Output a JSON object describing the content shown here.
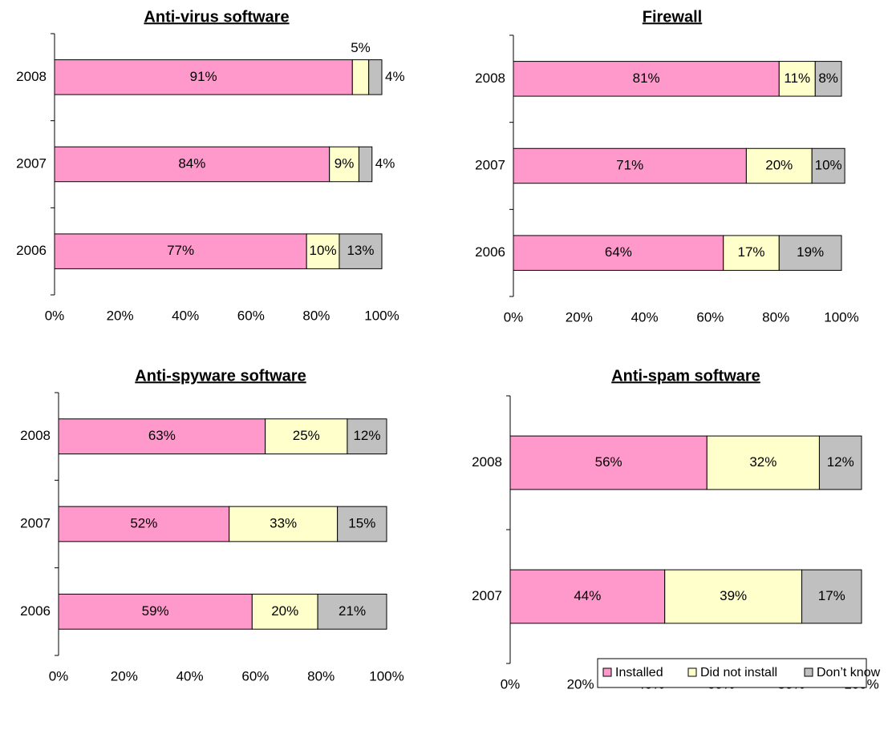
{
  "chart_data": [
    {
      "type": "stacked_bar_horizontal",
      "title": "Anti-virus software",
      "categories": [
        "2008",
        "2007",
        "2006"
      ],
      "series": [
        {
          "name": "Installed",
          "color": "#ff99cc",
          "values": [
            91,
            84,
            77
          ],
          "value_labels": [
            "91%",
            "84%",
            "77%"
          ]
        },
        {
          "name": "Did not install",
          "color": "#ffffcc",
          "values": [
            5,
            9,
            10
          ],
          "value_labels": [
            "5%",
            "9%",
            "10%"
          ]
        },
        {
          "name": "Don’t know",
          "color": "#c0c0c0",
          "values": [
            4,
            4,
            13
          ],
          "value_labels": [
            "4%",
            "4%",
            "13%"
          ]
        }
      ],
      "xlim": [
        0,
        100
      ],
      "xticks": [
        {
          "value": 0,
          "label": "0%"
        },
        {
          "value": 20,
          "label": "20%"
        },
        {
          "value": 40,
          "label": "40%"
        },
        {
          "value": 60,
          "label": "60%"
        },
        {
          "value": 80,
          "label": "80%"
        },
        {
          "value": 100,
          "label": "100%"
        }
      ]
    },
    {
      "type": "stacked_bar_horizontal",
      "title": "Firewall",
      "categories": [
        "2008",
        "2007",
        "2006"
      ],
      "series": [
        {
          "name": "Installed",
          "color": "#ff99cc",
          "values": [
            81,
            71,
            64
          ],
          "value_labels": [
            "81%",
            "71%",
            "64%"
          ]
        },
        {
          "name": "Did not install",
          "color": "#ffffcc",
          "values": [
            11,
            20,
            17
          ],
          "value_labels": [
            "11%",
            "20%",
            "17%"
          ]
        },
        {
          "name": "Don’t know",
          "color": "#c0c0c0",
          "values": [
            8,
            10,
            19
          ],
          "value_labels": [
            "8%",
            "10%",
            "19%"
          ]
        }
      ],
      "xlim": [
        0,
        100
      ],
      "xticks": [
        {
          "value": 0,
          "label": "0%"
        },
        {
          "value": 20,
          "label": "20%"
        },
        {
          "value": 40,
          "label": "40%"
        },
        {
          "value": 60,
          "label": "60%"
        },
        {
          "value": 80,
          "label": "80%"
        },
        {
          "value": 100,
          "label": "100%"
        }
      ]
    },
    {
      "type": "stacked_bar_horizontal",
      "title": "Anti-spyware software",
      "categories": [
        "2008",
        "2007",
        "2006"
      ],
      "series": [
        {
          "name": "Installed",
          "color": "#ff99cc",
          "values": [
            63,
            52,
            59
          ],
          "value_labels": [
            "63%",
            "52%",
            "59%"
          ]
        },
        {
          "name": "Did not install",
          "color": "#ffffcc",
          "values": [
            25,
            33,
            20
          ],
          "value_labels": [
            "25%",
            "33%",
            "20%"
          ]
        },
        {
          "name": "Don’t know",
          "color": "#c0c0c0",
          "values": [
            12,
            15,
            21
          ],
          "value_labels": [
            "12%",
            "15%",
            "21%"
          ]
        }
      ],
      "xlim": [
        0,
        100
      ],
      "xticks": [
        {
          "value": 0,
          "label": "0%"
        },
        {
          "value": 20,
          "label": "20%"
        },
        {
          "value": 40,
          "label": "40%"
        },
        {
          "value": 60,
          "label": "60%"
        },
        {
          "value": 80,
          "label": "80%"
        },
        {
          "value": 100,
          "label": "100%"
        }
      ]
    },
    {
      "type": "stacked_bar_horizontal",
      "title": "Anti-spam software",
      "categories": [
        "2008",
        "2007"
      ],
      "series": [
        {
          "name": "Installed",
          "color": "#ff99cc",
          "values": [
            56,
            44
          ],
          "value_labels": [
            "56%",
            "44%"
          ]
        },
        {
          "name": "Did not install",
          "color": "#ffffcc",
          "values": [
            32,
            39
          ],
          "value_labels": [
            "32%",
            "39%"
          ]
        },
        {
          "name": "Don’t know",
          "color": "#c0c0c0",
          "values": [
            12,
            17
          ],
          "value_labels": [
            "12%",
            "17%"
          ]
        }
      ],
      "xlim": [
        0,
        100
      ],
      "xticks": [
        {
          "value": 0,
          "label": "0%"
        },
        {
          "value": 20,
          "label": "20%"
        },
        {
          "value": 40,
          "label": "40%"
        },
        {
          "value": 60,
          "label": "60%"
        },
        {
          "value": 80,
          "label": "80%"
        },
        {
          "value": 100,
          "label": "100%"
        }
      ]
    }
  ]
}
